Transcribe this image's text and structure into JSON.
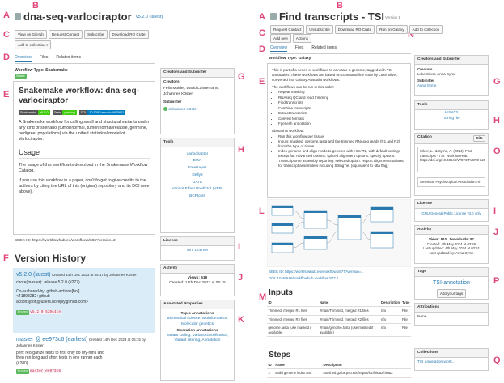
{
  "left": {
    "markers": [
      "A",
      "B",
      "C",
      "D",
      "E",
      "F",
      "G",
      "H",
      "I",
      "J",
      "K"
    ],
    "title": "dna-seq-varlociraptor",
    "version": "v5.2.0 (latest)",
    "buttons": [
      "View on GitHub",
      "Request Contact",
      "Subscribe",
      "Download RO Crate"
    ],
    "add_collection": "Add to collection",
    "tabs": [
      "Overview",
      "Files",
      "Related items"
    ],
    "workflow_type": "Workflow Type: Snakemake",
    "status": "Stable",
    "readme": {
      "heading": "Snakemake workflow: dna-seq-varlociraptor",
      "badges": [
        "Snakemake",
        "≥6.3.0",
        "Tests",
        "passing",
        "DOI",
        "10.5281/zenodo.4675661"
      ],
      "intro": "A Snakemake workflow for calling small and structural variants under any kind of scenario (tumor/normal, tumor/normal/relapse, germline, pedigree, populations) via the unified statistical model of Varlociraptor.",
      "usage_heading": "Usage",
      "usage": "The usage of this workflow is described in the Snakemake Workflow Catalog.",
      "cite": "If you use this workflow in a paper, don't forget to give credits to the authors by citing the URL of this (original) repository and its DOI (see above)."
    },
    "seek_id": "SEEK ID: https://workflowhub.eu/workflows/686?version=2",
    "history_heading": "Version History",
    "versions": [
      {
        "name": "v5.2.0 (latest)",
        "created": "Created 14th Dec 2023 at 05:17 by Johannes Köster",
        "message": "chore(master): release 5.2.0 (#277)",
        "coauthor": "Co-authored-by: github-actions[bot] <41898282+github-actions[bot]@users.noreply.github.com>",
        "frozen": "Frozen",
        "ref": "v5.2.0 520c4ce"
      },
      {
        "name": "master @ ee973c6 (earliest)",
        "created": "Created 14th Dec 2023 at 05:15 by Johannes Köster",
        "message": "perf: reorganize tests to first only do dry-runs and then run long and short tests in one runner each (#280)",
        "frozen": "Frozen",
        "ref": "master ee973c6"
      }
    ],
    "creators": {
      "title": "Creators and Submitter",
      "creators_label": "Creators",
      "creators": "Felix Mölder, David Lahnemann, Johannes Köster",
      "submitter_label": "Submitter",
      "submitter": "Johannes Köster"
    },
    "tools": {
      "title": "Tools",
      "items": [
        "varlociraptor",
        "BWA",
        "FreeBayes",
        "Delly2",
        "GATK",
        "Variant Effect Predictor (VEP)",
        "BCFtools"
      ]
    },
    "license": {
      "title": "License",
      "value": "MIT License"
    },
    "activity": {
      "title": "Activity",
      "views": "Views: 519",
      "created": "Created: 14th Dec 2023 at 05:15"
    },
    "annotated": {
      "title": "Annotated Properties",
      "topic_label": "Topic annotations",
      "topics": "Biomedical science, Bioinformatics, Molecular genetics",
      "operation_label": "Operation annotations",
      "operations": "Variant calling, Variant classification, Variant filtering, Annotation"
    }
  },
  "right": {
    "markers": [
      "A",
      "B",
      "C",
      "N",
      "D",
      "E",
      "L",
      "M",
      "G",
      "H",
      "O",
      "I",
      "J",
      "P",
      "Q"
    ],
    "title": "Find transcripts - TSI",
    "version": "Version 1",
    "buttons": [
      "Request Contact",
      "Unsubscribe",
      "Download RO-Crate",
      "Run on Galaxy",
      "Add to collection"
    ],
    "buttons2": [
      "Add new",
      "Actions"
    ],
    "tabs": [
      "Overview",
      "Files",
      "Related items"
    ],
    "workflow_type": "Workflow Type: Galaxy",
    "description": {
      "intro": "This is part of a series of workflows to annotate a genome, tagged with TSI-annotation. These workflows are based on command-line code by Luke Silver, converted into Galaxy Australia workflows.",
      "order_label": "The workflows can be run in this order:",
      "order": [
        "Repeat masking",
        "RNAseq QC and read trimming",
        "Find transcripts",
        "Combine transcripts",
        "Extract transcripts",
        "Convert formats",
        "Fgenesh annotation"
      ],
      "about_label": "About this workflow:",
      "about": [
        "Run this workflow per tissue.",
        "Inputs: masked_genome.fasta and the trimmed RNAseq reads (R1 and R2) from the type of tissue.",
        "Index genome and align reads to genome with HISAT2, with default settings except for: Advanced options: spliced alignment options: specify options: Transcriptome assembly reporting: selected option: Report alignments tailored for transcript assemblers including StringTie. (equivalent to -dta flag)"
      ]
    },
    "seek_id": "SEEK ID: https://workflowhub.eu/workflows/877?version=1",
    "doi": "DOI: 10.48546/workflowhub.workflow.877.1",
    "inputs": {
      "heading": "Inputs",
      "header": [
        "ID",
        "Name",
        "Description",
        "Type"
      ],
      "rows": [
        [
          "Trimmed, merged R1 files",
          "#main/Trimmed, merged R1 files",
          "n/a",
          "File"
        ],
        [
          "Trimmed, merged R2 files",
          "#main/Trimmed, merged R2 files",
          "n/a",
          "File"
        ],
        [
          "genome.fasta (use masked if available)",
          "#main/genome.fasta (use masked if available)",
          "n/a",
          "File"
        ]
      ]
    },
    "steps": {
      "heading": "Steps",
      "header": [
        "ID",
        "Name",
        "Description"
      ],
      "rows": [
        [
          "2",
          "Build genome index and",
          "toolshed.g2.bx.psu.edu/repos/iuc/hisat2/hisat2"
        ]
      ]
    },
    "creators": {
      "title": "Creators and Submitter",
      "creators_label": "Creators",
      "creators": "Luke Silver, Anna Syme",
      "submitter_label": "Submitter",
      "submitter": "Anna Syme"
    },
    "tools": {
      "title": "Tools",
      "items": [
        "HISAT2",
        "StringTie"
      ]
    },
    "citation": {
      "title": "Citation",
      "button": "Cite",
      "text": "Silver, L., & Syme, A. (2024). Find transcripts - TSI. WorkflowHub. https://doi.org/10.48546/WORKFLOWHUB.WORKFLOW.877.1",
      "style": "American Psychological Association 7th"
    },
    "license": {
      "title": "License",
      "value": "GNU General Public License v3.0 only"
    },
    "activity": {
      "title": "Activity",
      "views": "Views: 810",
      "downloads": "Downloads: 87",
      "created": "Created: 4th May 2024 at 03:46",
      "updated": "Last updated: 4th May 2024 at 03:51",
      "updated_by": "Last updated by: Anna Syme"
    },
    "tags": {
      "title": "Tags",
      "tag": "TSI-annotation",
      "add": "Add your tags"
    },
    "attributions": {
      "title": "Attributions",
      "value": "None"
    },
    "collections": {
      "title": "Collections",
      "item": "TSI annotation work..."
    }
  }
}
